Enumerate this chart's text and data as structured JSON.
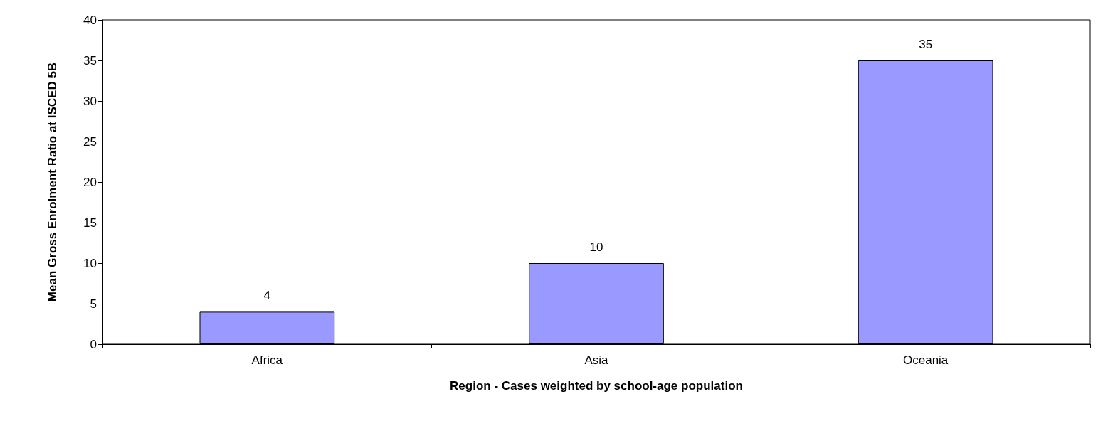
{
  "chart_data": {
    "type": "bar",
    "xlabel": "Region - Cases weighted by school-age population",
    "ylabel": "Mean Gross Enrolment Ratio at ISCED 5B",
    "categories": [
      "Africa",
      "Asia",
      "Oceania"
    ],
    "values": [
      4,
      10,
      35
    ],
    "color": "#9999ff",
    "ylim": [
      0,
      40
    ],
    "yticks": [
      0,
      5,
      10,
      15,
      20,
      25,
      30,
      35,
      40
    ],
    "grid": false,
    "data_labels": true
  }
}
